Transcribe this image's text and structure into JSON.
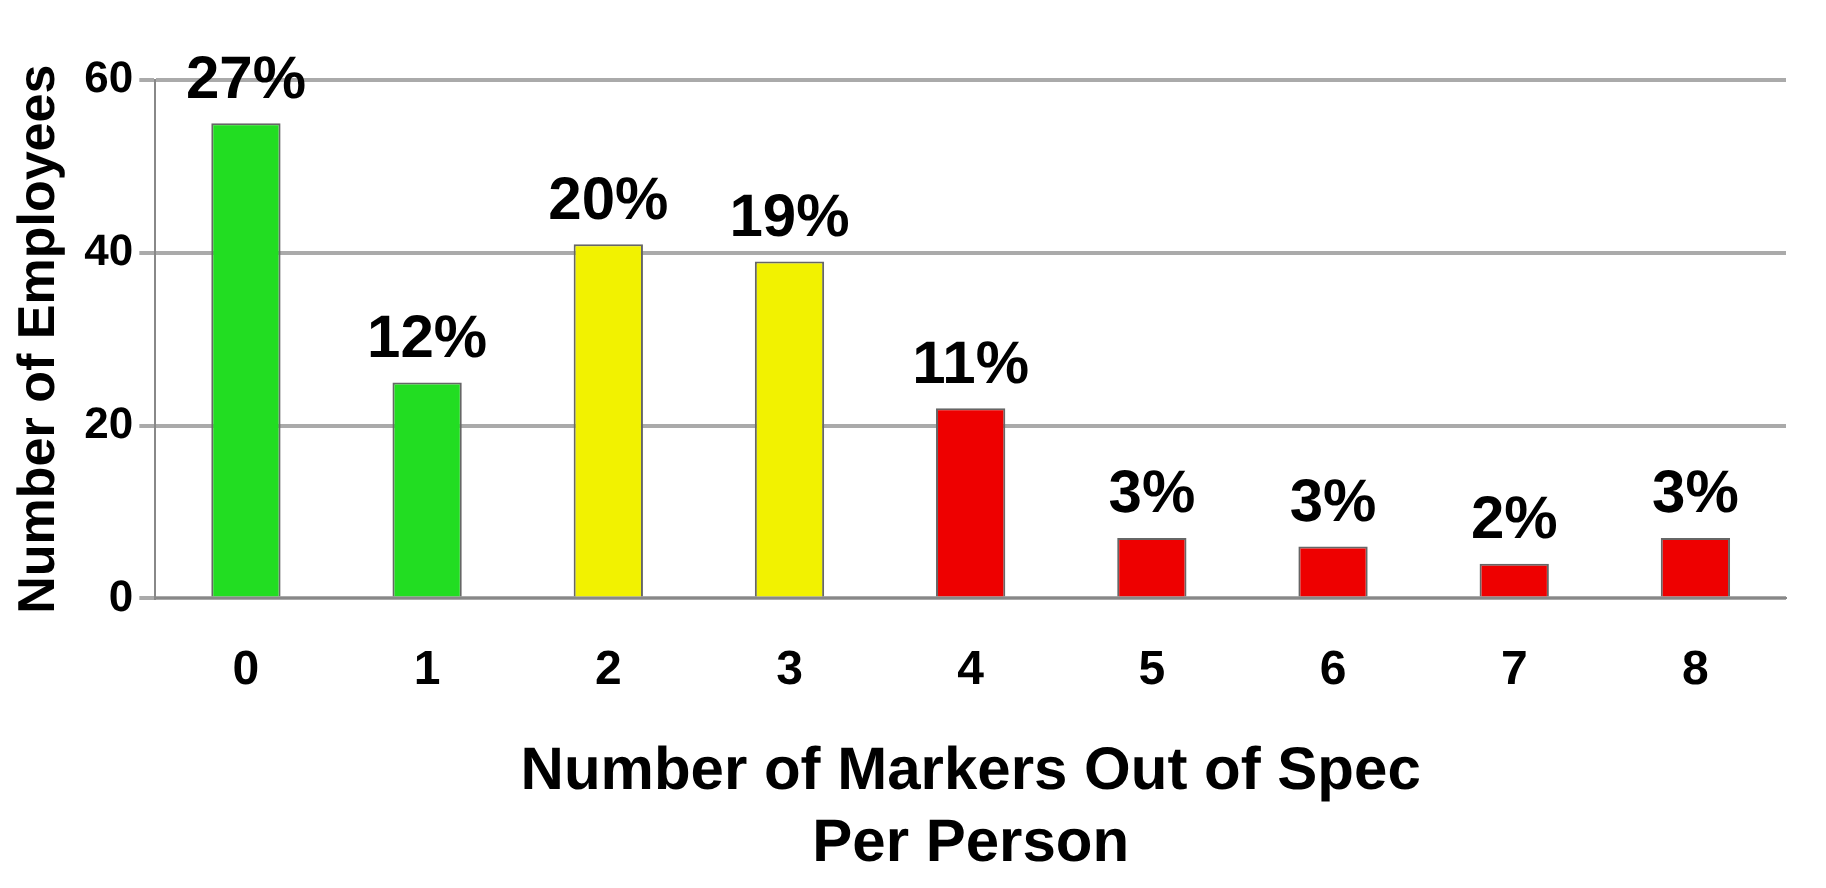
{
  "chart_data": {
    "type": "bar",
    "xlabel": "Number of Markers Out of Spec\nPer Person",
    "ylabel": "Number of Employees",
    "categories": [
      "0",
      "1",
      "2",
      "3",
      "4",
      "5",
      "6",
      "7",
      "8"
    ],
    "values": [
      55,
      25,
      41,
      39,
      22,
      7,
      6,
      4,
      7
    ],
    "colors": [
      "#22dd22",
      "#22dd22",
      "#f2f200",
      "#f2f200",
      "#ee0000",
      "#ee0000",
      "#ee0000",
      "#ee0000",
      "#ee0000"
    ],
    "annotations": [
      {
        "text": "27%",
        "x": "0",
        "y": 55
      },
      {
        "text": "12%",
        "x": "1",
        "y": 25
      },
      {
        "text": "20%",
        "x": "2",
        "y": 41
      },
      {
        "text": "19%",
        "x": "3",
        "y": 39
      },
      {
        "text": "11%",
        "x": "4",
        "y": 22
      },
      {
        "text": "3%",
        "x": "5",
        "y": 7
      },
      {
        "text": "3%",
        "x": "6",
        "y": 6
      },
      {
        "text": "2%",
        "x": "7",
        "y": 4
      },
      {
        "text": "3%",
        "x": "8",
        "y": 7
      }
    ],
    "ylim": [
      0,
      60
    ],
    "yticks": [
      0,
      20,
      40,
      60
    ],
    "grid": "y",
    "legend": false
  }
}
